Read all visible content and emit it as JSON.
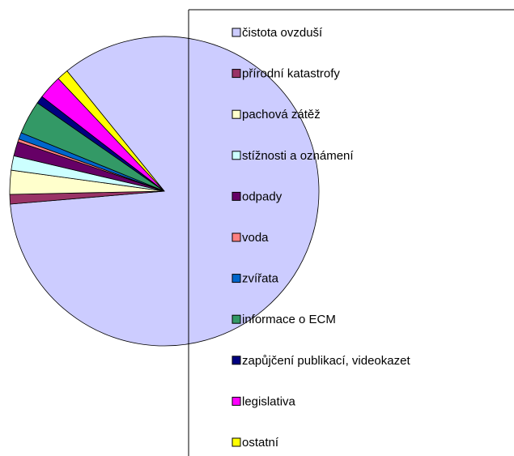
{
  "chart_data": {
    "type": "pie",
    "categories": [
      "čistota ovzduší",
      "přírodní katastrofy",
      "pachová zátěž",
      "stížnosti a oznámení",
      "odpady",
      "voda",
      "zvířata",
      "informace o ECM",
      "zapůjčení publikací, videokazet",
      "legislativa",
      "ostatní"
    ],
    "values": [
      84.5,
      1,
      2.5,
      1.5,
      1.5,
      0.3,
      0.7,
      3.5,
      0.8,
      2.5,
      1.2
    ],
    "colors": [
      "#ccccff",
      "#993366",
      "#ffffcc",
      "#ccffff",
      "#660066",
      "#ff8080",
      "#0066cc",
      "#339966",
      "#000080",
      "#ff00ff",
      "#ffff00"
    ],
    "legend": "right"
  }
}
